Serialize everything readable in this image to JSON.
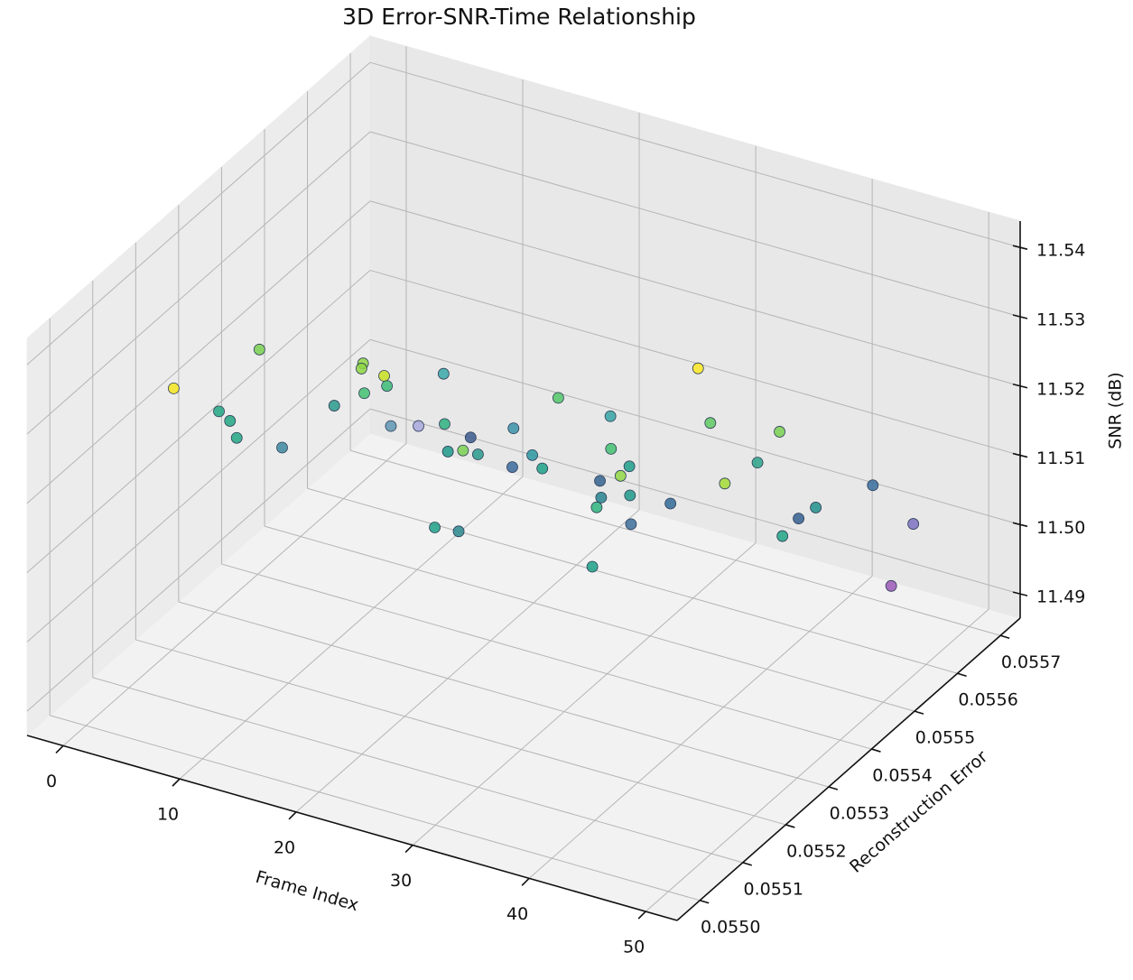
{
  "chart_data": {
    "type": "scatter3d",
    "title": "3D Error-SNR-Time Relationship",
    "xlabel": "Frame Index",
    "ylabel": "Reconstruction Error",
    "zlabel": "SNR (dB)",
    "xlim": [
      -3.1,
      52.7
    ],
    "ylim": [
      0.054947,
      0.055746
    ],
    "zlim": [
      11.4865,
      11.5438
    ],
    "xticks": [
      0,
      10,
      20,
      30,
      40,
      50
    ],
    "yticks": [
      {
        "value": 0.055,
        "label": "0.0550"
      },
      0.0551,
      0.0552,
      0.0553,
      0.0554,
      0.0555,
      0.0556,
      0.0557
    ],
    "zticks": [
      11.49,
      {
        "value": 11.5,
        "label": "11.50"
      },
      11.51,
      11.52,
      11.53,
      11.54
    ],
    "grid": true,
    "x": [
      3,
      8,
      6,
      4,
      9,
      7,
      10,
      11,
      5,
      17,
      4,
      16,
      9,
      4,
      15,
      18,
      8,
      24,
      7,
      15,
      26,
      31,
      15,
      21,
      27,
      22,
      16,
      41,
      34,
      24,
      30,
      22,
      19,
      39,
      34,
      28,
      31,
      33,
      28,
      32,
      45,
      39,
      35,
      47,
      44,
      44,
      43,
      45,
      49
    ],
    "y": [
      0.055123,
      0.055187,
      0.055147,
      0.055227,
      0.055107,
      0.055267,
      0.055307,
      0.055347,
      0.055506,
      0.055187,
      0.055586,
      0.055267,
      0.055466,
      0.055666,
      0.055426,
      0.055347,
      0.055626,
      0.055227,
      0.055706,
      0.055506,
      0.055107,
      0.055027,
      0.055586,
      0.055426,
      0.055307,
      0.055466,
      0.055666,
      0.055067,
      0.055267,
      0.055546,
      0.055386,
      0.055626,
      0.055706,
      0.055187,
      0.055347,
      0.055506,
      0.055426,
      0.055466,
      0.055666,
      0.055586,
      0.055267,
      0.055506,
      0.055666,
      0.055347,
      0.055466,
      0.055506,
      0.055666,
      0.055706,
      0.055546
    ],
    "z": [
      11.5299,
      11.5344,
      11.5267,
      11.52,
      11.5265,
      11.5154,
      11.5207,
      11.5251,
      11.5128,
      11.5324,
      11.5069,
      11.5286,
      11.5086,
      11.4953,
      11.5212,
      11.5197,
      11.4957,
      11.5253,
      11.4929,
      11.5052,
      11.5217,
      11.5279,
      11.499,
      11.5162,
      11.5217,
      11.5087,
      11.5051,
      11.5254,
      11.5197,
      11.5035,
      11.5127,
      11.5028,
      11.5017,
      11.531,
      11.5129,
      11.5097,
      11.5113,
      11.5089,
      11.5151,
      11.5135,
      11.5284,
      11.5155,
      11.5093,
      11.5174,
      11.512,
      11.5114,
      11.5054,
      11.4986,
      11.5003
    ],
    "colors": [
      "#f4e61e",
      "#7ad151",
      "#22a884",
      "#22a884",
      "#22a884",
      "#3e88a0",
      "#2a9a8c",
      "#8fd744",
      "#8fd744",
      "#43bf71",
      "#c8e020",
      "#3bbb75",
      "#5f97b3",
      "#a8a8dd",
      "#3aa8a8",
      "#2db27d",
      "#1f9a8a",
      "#7ad151",
      "#3b5b8c",
      "#2a9a8c",
      "#1fa187",
      "#2c8a8e",
      "#3b6a9c",
      "#3a93a8",
      "#2a98a0",
      "#1fa187",
      "#52c569",
      "#1fa187",
      "#2fb47c",
      "#33638d",
      "#26828e",
      "#43bf71",
      "#35a3a3",
      "#8fd744",
      "#3d6d9a",
      "#1f9e89",
      "#1f9a8a",
      "#336a98",
      "#fde725",
      "#5ec962",
      "#a5db36",
      "#2ba38a",
      "#7ad151",
      "#20a486",
      "#345f8f",
      "#21918c",
      "#3a6f9e",
      "#7b72c0",
      "#9b59b6"
    ]
  }
}
